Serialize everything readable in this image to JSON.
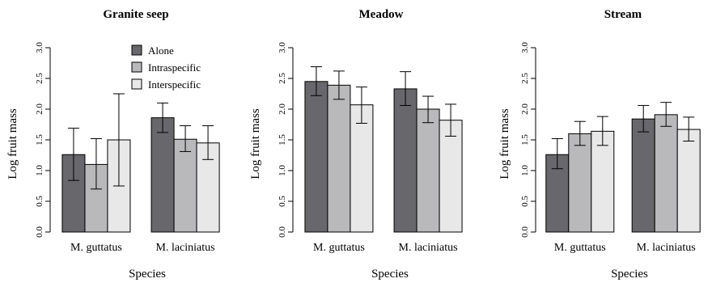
{
  "chart_data": [
    {
      "type": "bar",
      "title": "Granite seep",
      "xlabel": "Species",
      "ylabel": "Log fruit mass",
      "ylim": [
        0,
        3.0
      ],
      "yticks": [
        "0.0",
        "0.5",
        "1.0",
        "1.5",
        "2.0",
        "2.5",
        "3.0"
      ],
      "categories": [
        "M. guttatus",
        "M. laciniatus"
      ],
      "legend": {
        "placement": "top-center"
      },
      "series": [
        {
          "name": "Alone",
          "values": [
            1.26,
            1.86
          ],
          "err_low": [
            0.84,
            1.62
          ],
          "err_high": [
            1.69,
            2.1
          ]
        },
        {
          "name": "Intraspecific",
          "values": [
            1.1,
            1.51
          ],
          "err_low": [
            0.7,
            1.31
          ],
          "err_high": [
            1.52,
            1.73
          ]
        },
        {
          "name": "Interspecific",
          "values": [
            1.5,
            1.45
          ],
          "err_low": [
            0.75,
            1.18
          ],
          "err_high": [
            2.25,
            1.73
          ]
        }
      ]
    },
    {
      "type": "bar",
      "title": "Meadow",
      "xlabel": "Species",
      "ylabel": "Log fruit mass",
      "ylim": [
        0,
        3.0
      ],
      "yticks": [
        "0.0",
        "0.5",
        "1.0",
        "1.5",
        "2.0",
        "2.5",
        "3.0"
      ],
      "categories": [
        "M. guttatus",
        "M. laciniatus"
      ],
      "series": [
        {
          "name": "Alone",
          "values": [
            2.45,
            2.33
          ],
          "err_low": [
            2.22,
            2.06
          ],
          "err_high": [
            2.69,
            2.61
          ]
        },
        {
          "name": "Intraspecific",
          "values": [
            2.39,
            2.0
          ],
          "err_low": [
            2.16,
            1.78
          ],
          "err_high": [
            2.62,
            2.21
          ]
        },
        {
          "name": "Interspecific",
          "values": [
            2.07,
            1.82
          ],
          "err_low": [
            1.77,
            1.56
          ],
          "err_high": [
            2.36,
            2.08
          ]
        }
      ]
    },
    {
      "type": "bar",
      "title": "Stream",
      "xlabel": "Species",
      "ylabel": "Log fruit mass",
      "ylim": [
        0,
        3.0
      ],
      "yticks": [
        "0.0",
        "0.5",
        "1.0",
        "1.5",
        "2.0",
        "2.5",
        "3.0"
      ],
      "categories": [
        "M. guttatus",
        "M. laciniatus"
      ],
      "series": [
        {
          "name": "Alone",
          "values": [
            1.26,
            1.84
          ],
          "err_low": [
            1.03,
            1.63
          ],
          "err_high": [
            1.52,
            2.06
          ]
        },
        {
          "name": "Intraspecific",
          "values": [
            1.6,
            1.91
          ],
          "err_low": [
            1.41,
            1.72
          ],
          "err_high": [
            1.8,
            2.11
          ]
        },
        {
          "name": "Interspecific",
          "values": [
            1.64,
            1.67
          ],
          "err_low": [
            1.41,
            1.48
          ],
          "err_high": [
            1.88,
            1.87
          ]
        }
      ]
    }
  ],
  "colors": {
    "Alone": "#68686c",
    "Intraspecific": "#b9b9bc",
    "Interspecific": "#e8e8e8",
    "stroke": "#000000"
  }
}
